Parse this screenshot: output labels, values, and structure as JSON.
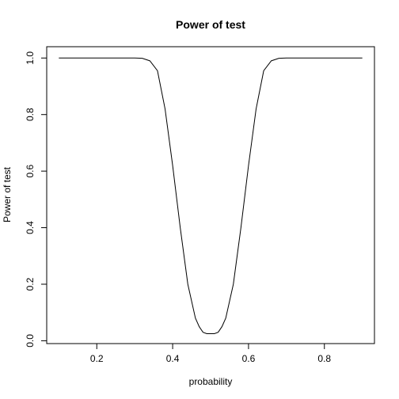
{
  "chart_data": {
    "type": "line",
    "title": "Power of test",
    "xlabel": "probability",
    "ylabel": "Power of test",
    "xlim": [
      0.068,
      0.932
    ],
    "ylim": [
      -0.01,
      1.04
    ],
    "xticks": [
      "0.2",
      "0.4",
      "0.6",
      "0.8"
    ],
    "yticks": [
      "0.0",
      "0.2",
      "0.4",
      "0.6",
      "0.8",
      "1.0"
    ],
    "grid": false,
    "series": [
      {
        "color": "#000000",
        "x": [
          0.1,
          0.15,
          0.2,
          0.25,
          0.3,
          0.32,
          0.34,
          0.36,
          0.38,
          0.4,
          0.42,
          0.44,
          0.46,
          0.47,
          0.48,
          0.49,
          0.5,
          0.51,
          0.52,
          0.53,
          0.54,
          0.56,
          0.58,
          0.6,
          0.62,
          0.64,
          0.66,
          0.68,
          0.7,
          0.75,
          0.8,
          0.85,
          0.9
        ],
        "y": [
          1.0,
          1.0,
          1.0,
          1.0,
          1.0,
          0.999,
          0.99,
          0.955,
          0.82,
          0.62,
          0.4,
          0.2,
          0.08,
          0.05,
          0.03,
          0.025,
          0.025,
          0.025,
          0.03,
          0.05,
          0.08,
          0.2,
          0.4,
          0.62,
          0.82,
          0.955,
          0.99,
          0.999,
          1.0,
          1.0,
          1.0,
          1.0,
          1.0
        ]
      }
    ]
  }
}
